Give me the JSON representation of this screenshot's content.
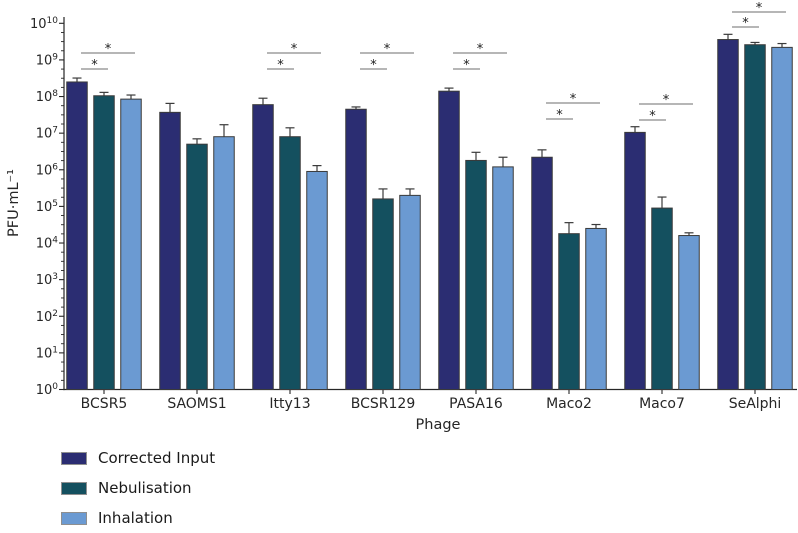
{
  "chart_data": {
    "type": "bar",
    "orientation": "vertical",
    "yscale": "log",
    "xlabel": "Phage",
    "ylabel": "PFU·mL⁻¹",
    "ylim": [
      1,
      10000000000.0
    ],
    "ytick_base": "10",
    "ytick_exponents": [
      0,
      1,
      2,
      3,
      4,
      5,
      6,
      7,
      8,
      9,
      10
    ],
    "grid": false,
    "legend_position": "bottom-left",
    "categories": [
      "BCSR5",
      "SAOMS1",
      "Itty13",
      "BCSR129",
      "PASA16",
      "Maco2",
      "Maco7",
      "SeAlphi"
    ],
    "series": [
      {
        "name": "Corrected Input",
        "color": "#2b2d72",
        "values": [
          250000000.0,
          37000000.0,
          60000000.0,
          45000000.0,
          140000000.0,
          2200000.0,
          10500000.0,
          3600000000.0
        ],
        "err_hi": [
          320000000.0,
          65000000.0,
          90000000.0,
          52000000.0,
          170000000.0,
          3500000.0,
          15000000.0,
          5000000000.0
        ]
      },
      {
        "name": "Nebulisation",
        "color": "#14505f",
        "values": [
          105000000.0,
          5000000.0,
          8000000.0,
          160000.0,
          1800000.0,
          18000.0,
          90000.0,
          2600000000.0
        ],
        "err_hi": [
          130000000.0,
          7000000.0,
          14000000.0,
          300000.0,
          3000000.0,
          36000.0,
          180000.0,
          3000000000.0
        ]
      },
      {
        "name": "Inhalation",
        "color": "#6b9ad2",
        "values": [
          85000000.0,
          8000000.0,
          900000.0,
          200000.0,
          1200000.0,
          25000.0,
          16000.0,
          2200000000.0
        ],
        "err_hi": [
          110000000.0,
          17000000.0,
          1300000.0,
          300000.0,
          2200000.0,
          32000.0,
          19000.0,
          2800000000.0
        ]
      }
    ],
    "significance": [
      {
        "category": "BCSR5",
        "category_index": 0,
        "pairs": [
          {
            "bars": [
              0,
              2
            ],
            "y": 53,
            "label": "*"
          },
          {
            "bars": [
              0,
              1
            ],
            "y": 69,
            "label": "*"
          }
        ]
      },
      {
        "category": "Itty13",
        "category_index": 2,
        "pairs": [
          {
            "bars": [
              0,
              2
            ],
            "y": 53,
            "label": "*"
          },
          {
            "bars": [
              0,
              1
            ],
            "y": 69,
            "label": "*"
          }
        ]
      },
      {
        "category": "BCSR129",
        "category_index": 3,
        "pairs": [
          {
            "bars": [
              0,
              2
            ],
            "y": 53,
            "label": "*"
          },
          {
            "bars": [
              0,
              1
            ],
            "y": 69,
            "label": "*"
          }
        ]
      },
      {
        "category": "PASA16",
        "category_index": 4,
        "pairs": [
          {
            "bars": [
              0,
              2
            ],
            "y": 53,
            "label": "*"
          },
          {
            "bars": [
              0,
              1
            ],
            "y": 69,
            "label": "*"
          }
        ]
      },
      {
        "category": "Maco2",
        "category_index": 5,
        "pairs": [
          {
            "bars": [
              0,
              2
            ],
            "y": 103,
            "label": "*"
          },
          {
            "bars": [
              0,
              1
            ],
            "y": 119,
            "label": "*"
          }
        ]
      },
      {
        "category": "Maco7",
        "category_index": 6,
        "pairs": [
          {
            "bars": [
              0,
              2
            ],
            "y": 104,
            "label": "*"
          },
          {
            "bars": [
              0,
              1
            ],
            "y": 120,
            "label": "*"
          }
        ]
      },
      {
        "category": "SeAlphi",
        "category_index": 7,
        "pairs": [
          {
            "bars": [
              0,
              2
            ],
            "y": 12,
            "label": "*"
          },
          {
            "bars": [
              0,
              1
            ],
            "y": 27,
            "label": "*"
          }
        ]
      }
    ]
  }
}
